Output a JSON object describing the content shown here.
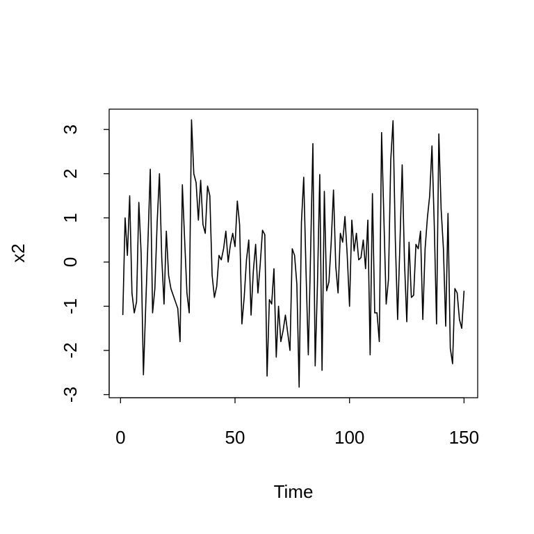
{
  "chart_data": {
    "type": "line",
    "x_label": "Time",
    "y_label": "x2",
    "x": [
      1,
      2,
      3,
      4,
      5,
      6,
      7,
      8,
      9,
      10,
      11,
      12,
      13,
      14,
      15,
      16,
      17,
      18,
      19,
      20,
      21,
      22,
      23,
      24,
      25,
      26,
      27,
      28,
      29,
      30,
      31,
      32,
      33,
      34,
      35,
      36,
      37,
      38,
      39,
      40,
      41,
      42,
      43,
      44,
      45,
      46,
      47,
      48,
      49,
      50,
      51,
      52,
      53,
      54,
      55,
      56,
      57,
      58,
      59,
      60,
      61,
      62,
      63,
      64,
      65,
      66,
      67,
      68,
      69,
      70,
      71,
      72,
      73,
      74,
      75,
      76,
      77,
      78,
      79,
      80,
      81,
      82,
      83,
      84,
      85,
      86,
      87,
      88,
      89,
      90,
      91,
      92,
      93,
      94,
      95,
      96,
      97,
      98,
      99,
      100,
      101,
      102,
      103,
      104,
      105,
      106,
      107,
      108,
      109,
      110,
      111,
      112,
      113,
      114,
      115,
      116,
      117,
      118,
      119,
      120,
      121,
      122,
      123,
      124,
      125,
      126,
      127,
      128,
      129,
      130,
      131,
      132,
      133,
      134,
      135,
      136,
      137,
      138,
      139,
      140,
      141,
      142,
      143,
      144,
      145,
      146,
      147,
      148,
      149,
      150
    ],
    "series": [
      {
        "name": "x2",
        "color": "#000000",
        "values": [
          -1.2,
          1.0,
          0.15,
          1.5,
          -0.7,
          -1.15,
          -0.9,
          1.35,
          0.2,
          -2.55,
          -1.0,
          0.5,
          2.1,
          -1.15,
          -0.6,
          0.9,
          2.0,
          0.1,
          -0.95,
          0.7,
          -0.3,
          -0.6,
          -0.75,
          -0.9,
          -1.05,
          -1.8,
          1.75,
          0.5,
          -0.7,
          -1.15,
          3.22,
          2.0,
          1.8,
          0.95,
          1.85,
          0.85,
          0.65,
          1.72,
          1.5,
          -0.3,
          -0.8,
          -0.55,
          0.15,
          0.05,
          0.3,
          0.7,
          0.0,
          0.4,
          0.65,
          0.35,
          1.38,
          0.85,
          -1.4,
          -0.8,
          0.05,
          0.5,
          -1.2,
          -0.2,
          0.4,
          -0.7,
          -0.05,
          0.72,
          0.62,
          -2.58,
          -0.85,
          -0.95,
          -0.15,
          -2.15,
          -1.0,
          -1.8,
          -1.55,
          -1.2,
          -1.6,
          -2.0,
          0.3,
          0.15,
          -0.5,
          -2.83,
          0.9,
          1.92,
          -0.2,
          -2.1,
          0.2,
          2.68,
          -2.35,
          -0.5,
          1.98,
          -2.45,
          1.6,
          -0.65,
          -0.45,
          0.45,
          1.63,
          -0.1,
          -0.7,
          0.65,
          0.45,
          1.03,
          0.15,
          -1.0,
          0.95,
          0.25,
          0.65,
          0.05,
          0.1,
          0.5,
          -0.15,
          0.95,
          -2.1,
          1.55,
          -1.15,
          -1.15,
          -1.8,
          2.93,
          1.0,
          -0.95,
          -0.4,
          2.3,
          3.2,
          0.5,
          -1.3,
          0.4,
          2.2,
          0.0,
          -1.35,
          0.45,
          -0.8,
          -0.75,
          0.4,
          0.3,
          0.7,
          -1.3,
          0.3,
          1.0,
          1.5,
          2.63,
          0.85,
          -1.4,
          2.9,
          1.2,
          0.3,
          -1.45,
          1.1,
          -1.95,
          -2.3,
          -0.6,
          -0.7,
          -1.3,
          -1.5,
          -0.65
        ]
      }
    ],
    "xlim": [
      -4.96,
      155.96
    ],
    "ylim": [
      -3.07,
      3.46
    ],
    "xticks": [
      0,
      50,
      100,
      150
    ],
    "yticks": [
      -3,
      -2,
      -1,
      0,
      1,
      2,
      3
    ],
    "grid": false
  }
}
